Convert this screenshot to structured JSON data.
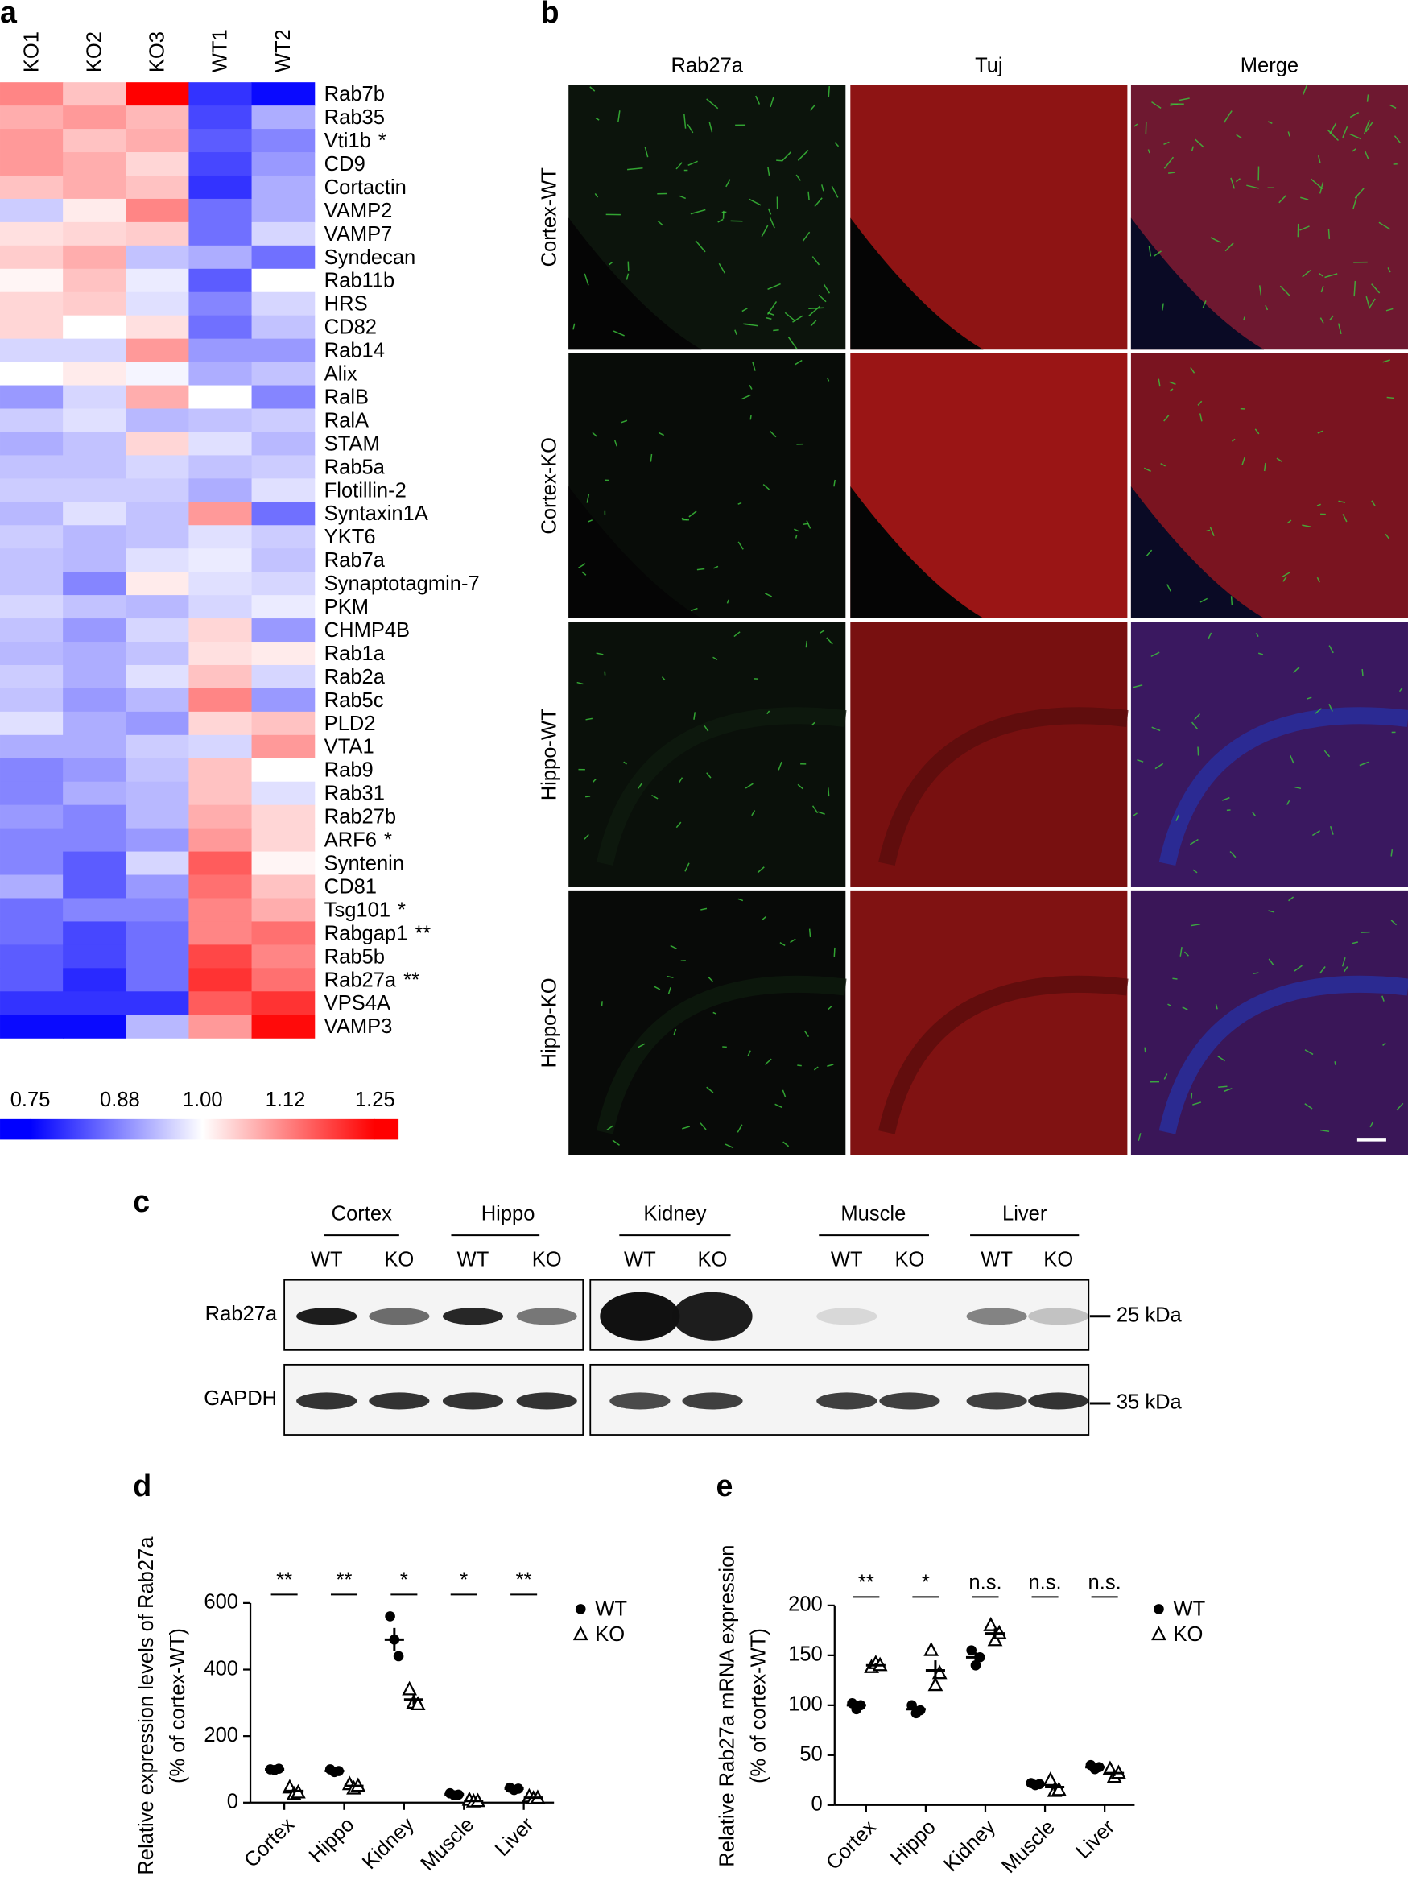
{
  "panel_labels": [
    "a",
    "b",
    "c",
    "d",
    "e"
  ],
  "chart_data": [
    {
      "type": "heatmap",
      "columns": [
        "KO1",
        "KO2",
        "KO3",
        "WT1",
        "WT2"
      ],
      "rows": [
        "Rab7b",
        "Rab35",
        "Vti1b",
        "CD9",
        "Cortactin",
        "VAMP2",
        "VAMP7",
        "Syndecan",
        "Rab11b",
        "HRS",
        "CD82",
        "Rab14",
        "Alix",
        "RalB",
        "RalA",
        "STAM",
        "Rab5a",
        "Flotillin-2",
        "Syntaxin1A",
        "YKT6",
        "Rab7a",
        "Synaptotagmin-7",
        "PKM",
        "CHMP4B",
        "Rab1a",
        "Rab2a",
        "Rab5c",
        "PLD2",
        "VTA1",
        "Rab9",
        "Rab31",
        "Rab27b",
        "ARF6",
        "Syntenin",
        "CD81",
        "Tsg101",
        "Rabgap1",
        "Rab5b",
        "Rab27a",
        "VPS4A",
        "VAMP3"
      ],
      "significance": [
        null,
        null,
        "*",
        null,
        null,
        null,
        null,
        null,
        null,
        null,
        null,
        null,
        null,
        null,
        null,
        null,
        null,
        null,
        null,
        null,
        null,
        null,
        null,
        null,
        null,
        null,
        null,
        null,
        null,
        null,
        null,
        null,
        "*",
        null,
        null,
        "*",
        "**",
        null,
        "**",
        null,
        null
      ],
      "values": [
        [
          1.12,
          1.06,
          1.25,
          0.8,
          0.76
        ],
        [
          1.08,
          1.1,
          1.07,
          0.82,
          0.92
        ],
        [
          1.1,
          1.06,
          1.08,
          0.84,
          0.88
        ],
        [
          1.1,
          1.08,
          1.04,
          0.82,
          0.9
        ],
        [
          1.06,
          1.08,
          1.06,
          0.8,
          0.92
        ],
        [
          0.95,
          1.02,
          1.12,
          0.86,
          0.92
        ],
        [
          1.03,
          1.04,
          1.05,
          0.86,
          0.96
        ],
        [
          1.05,
          1.08,
          0.94,
          0.92,
          0.86
        ],
        [
          1.01,
          1.06,
          0.98,
          0.84,
          1.0
        ],
        [
          1.04,
          1.05,
          0.97,
          0.88,
          0.96
        ],
        [
          1.04,
          1.0,
          1.03,
          0.86,
          0.94
        ],
        [
          0.96,
          0.96,
          1.1,
          0.9,
          0.9
        ],
        [
          1.0,
          1.02,
          0.99,
          0.92,
          0.94
        ],
        [
          0.9,
          0.96,
          1.08,
          1.0,
          0.88
        ],
        [
          0.95,
          0.97,
          0.93,
          0.94,
          0.95
        ],
        [
          0.92,
          0.94,
          1.04,
          0.97,
          0.93
        ],
        [
          0.94,
          0.94,
          0.96,
          0.94,
          0.95
        ],
        [
          0.95,
          0.95,
          0.95,
          0.92,
          0.97
        ],
        [
          0.93,
          0.97,
          0.94,
          1.1,
          0.86
        ],
        [
          0.95,
          0.93,
          0.94,
          0.97,
          0.95
        ],
        [
          0.94,
          0.93,
          0.97,
          0.98,
          0.94
        ],
        [
          0.94,
          0.88,
          1.02,
          0.97,
          0.96
        ],
        [
          0.96,
          0.94,
          0.93,
          0.96,
          0.98
        ],
        [
          0.94,
          0.9,
          0.96,
          1.04,
          0.9
        ],
        [
          0.93,
          0.92,
          0.94,
          1.03,
          1.02
        ],
        [
          0.95,
          0.92,
          0.97,
          1.06,
          0.96
        ],
        [
          0.94,
          0.9,
          0.93,
          1.12,
          0.9
        ],
        [
          0.97,
          0.92,
          0.9,
          1.04,
          1.06
        ],
        [
          0.92,
          0.92,
          0.95,
          0.96,
          1.1
        ],
        [
          0.88,
          0.9,
          0.94,
          1.06,
          1.0
        ],
        [
          0.88,
          0.92,
          0.93,
          1.06,
          0.97
        ],
        [
          0.9,
          0.88,
          0.93,
          1.08,
          1.04
        ],
        [
          0.88,
          0.88,
          0.9,
          1.1,
          1.04
        ],
        [
          0.88,
          0.84,
          0.96,
          1.16,
          1.01
        ],
        [
          0.92,
          0.84,
          0.9,
          1.14,
          1.06
        ],
        [
          0.86,
          0.88,
          0.88,
          1.12,
          1.08
        ],
        [
          0.86,
          0.82,
          0.86,
          1.12,
          1.14
        ],
        [
          0.84,
          0.82,
          0.86,
          1.18,
          1.12
        ],
        [
          0.84,
          0.79,
          0.86,
          1.2,
          1.14
        ],
        [
          0.8,
          0.8,
          0.8,
          1.16,
          1.2
        ],
        [
          0.76,
          0.76,
          0.93,
          1.1,
          1.24
        ]
      ],
      "clim": [
        0.75,
        1.25
      ],
      "colorscale": [
        "#0000ff",
        "#ffffff",
        "#ff0000"
      ],
      "cticks": [
        0.75,
        0.88,
        {
          "value": 1,
          "label": "1.00"
        },
        1.12,
        1.25
      ]
    },
    {
      "type": "strip",
      "ylabel": [
        "Relative expression levels of Rab27a",
        "(% of cortex-WT)"
      ],
      "categories": [
        "Cortex",
        "Hippo",
        "Kidney",
        "Muscle",
        "Liver"
      ],
      "annotations": [
        "**",
        "**",
        "*",
        "*",
        "**"
      ],
      "ylim": [
        0,
        600
      ],
      "yticks": [
        0,
        200,
        400,
        600
      ],
      "series": [
        {
          "name": "WT",
          "marker": "circle",
          "color": "#000000",
          "values": [
            100,
            95,
            490,
            25,
            42
          ],
          "errors": [
            2,
            3,
            35,
            2,
            2
          ],
          "points": [
            [
              100,
              98,
              102
            ],
            [
              100,
              92,
              95
            ],
            [
              560,
              490,
              440
            ],
            [
              28,
              22,
              24
            ],
            [
              45,
              38,
              42
            ]
          ]
        },
        {
          "name": "KO",
          "marker": "triangle",
          "color": "#000000",
          "values": [
            35,
            50,
            310,
            5,
            15
          ],
          "errors": [
            6,
            4,
            15,
            1,
            2
          ],
          "points": [
            [
              45,
              25,
              30
            ],
            [
              55,
              42,
              50
            ],
            [
              340,
              300,
              295
            ],
            [
              8,
              3,
              4
            ],
            [
              18,
              12,
              14
            ]
          ]
        }
      ]
    },
    {
      "type": "strip",
      "ylabel": [
        "Relative Rab27a mRNA expression",
        "(% of cortex-WT)"
      ],
      "categories": [
        "Cortex",
        "Hippo",
        "Kidney",
        "Muscle",
        "Liver"
      ],
      "annotations": [
        "**",
        "*",
        "n.s.",
        "n.s.",
        "n.s."
      ],
      "ylim": [
        0,
        200
      ],
      "yticks": [
        0,
        50,
        100,
        150,
        200
      ],
      "series": [
        {
          "name": "WT",
          "marker": "circle",
          "color": "#000000",
          "values": [
            100,
            96,
            148,
            21,
            38
          ],
          "errors": [
            2,
            3,
            5,
            1,
            1
          ],
          "points": [
            [
              102,
              96,
              100
            ],
            [
              100,
              92,
              95
            ],
            [
              155,
              140,
              148
            ],
            [
              22,
              20,
              21
            ],
            [
              40,
              36,
              38
            ]
          ]
        },
        {
          "name": "KO",
          "marker": "triangle",
          "color": "#000000",
          "values": [
            140,
            135,
            172,
            18,
            32
          ],
          "errors": [
            2,
            10,
            5,
            4,
            3
          ],
          "points": [
            [
              138,
              142,
              140
            ],
            [
              155,
              120,
              132
            ],
            [
              180,
              165,
              172
            ],
            [
              25,
              14,
              15
            ],
            [
              36,
              28,
              32
            ]
          ]
        }
      ]
    }
  ],
  "panel_b": {
    "columns": [
      "Rab27a",
      "Tuj",
      "Merge"
    ],
    "rows": [
      "Cortex-WT",
      "Cortex-KO",
      "Hippo-WT",
      "Hippo-KO"
    ]
  },
  "panel_c": {
    "groups": [
      "Cortex",
      "Hippo",
      "Kidney",
      "Muscle",
      "Liver"
    ],
    "lanes": [
      "WT",
      "KO",
      "WT",
      "KO",
      "WT",
      "KO",
      "WT",
      "KO",
      "WT",
      "KO"
    ],
    "proteins": [
      "Rab27a",
      "GAPDH"
    ],
    "markers": [
      "25 kDa",
      "35 kDa"
    ]
  }
}
